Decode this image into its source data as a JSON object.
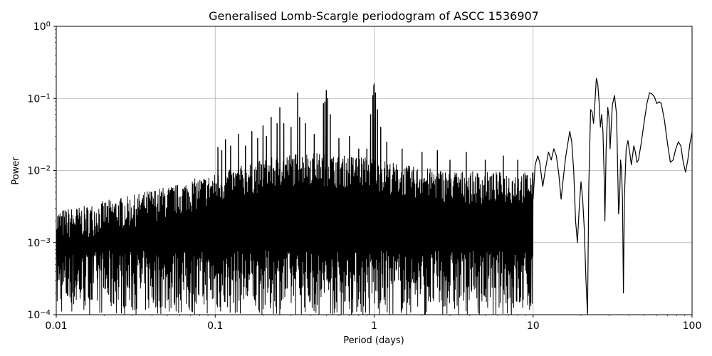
{
  "chart_data": {
    "type": "line",
    "title": "Generalised Lomb-Scargle periodogram of ASCC 1536907",
    "xlabel": "Period (days)",
    "ylabel": "Power",
    "xscale": "log",
    "yscale": "log",
    "xlim": [
      0.01,
      100
    ],
    "ylim": [
      0.0001,
      1
    ],
    "grid": true,
    "line_color": "#000000",
    "x_ticks": [
      {
        "value": 0.01,
        "label": "0.01"
      },
      {
        "value": 0.1,
        "label": "0.1"
      },
      {
        "value": 1,
        "label": "1"
      },
      {
        "value": 10,
        "label": "10"
      },
      {
        "value": 100,
        "label": "100"
      }
    ],
    "y_ticks": [
      {
        "value": 0.0001,
        "base": "10",
        "exp": "−4"
      },
      {
        "value": 0.001,
        "base": "10",
        "exp": "−3"
      },
      {
        "value": 0.01,
        "base": "10",
        "exp": "−2"
      },
      {
        "value": 0.1,
        "base": "10",
        "exp": "−1"
      },
      {
        "value": 1,
        "base": "10",
        "exp": "0"
      }
    ],
    "envelope": [
      [
        0.01,
        0.0028
      ],
      [
        0.012,
        0.003
      ],
      [
        0.015,
        0.0032
      ],
      [
        0.02,
        0.0038
      ],
      [
        0.025,
        0.0042
      ],
      [
        0.03,
        0.0045
      ],
      [
        0.04,
        0.0055
      ],
      [
        0.05,
        0.006
      ],
      [
        0.06,
        0.0065
      ],
      [
        0.07,
        0.0075
      ],
      [
        0.08,
        0.008
      ],
      [
        0.1,
        0.009
      ],
      [
        0.12,
        0.01
      ],
      [
        0.15,
        0.012
      ],
      [
        0.2,
        0.014
      ],
      [
        0.25,
        0.016
      ],
      [
        0.3,
        0.017
      ],
      [
        0.4,
        0.018
      ],
      [
        0.6,
        0.016
      ],
      [
        0.8,
        0.016
      ],
      [
        1.0,
        0.015
      ],
      [
        1.5,
        0.012
      ],
      [
        2.0,
        0.011
      ],
      [
        3.0,
        0.01
      ],
      [
        5.0,
        0.0095
      ],
      [
        7.0,
        0.0095
      ],
      [
        10.0,
        0.0095
      ]
    ],
    "spikes": [
      {
        "x": 0.104,
        "y": 0.021
      },
      {
        "x": 0.11,
        "y": 0.019
      },
      {
        "x": 0.116,
        "y": 0.027
      },
      {
        "x": 0.125,
        "y": 0.022
      },
      {
        "x": 0.14,
        "y": 0.032
      },
      {
        "x": 0.155,
        "y": 0.022
      },
      {
        "x": 0.17,
        "y": 0.035
      },
      {
        "x": 0.185,
        "y": 0.028
      },
      {
        "x": 0.2,
        "y": 0.042
      },
      {
        "x": 0.21,
        "y": 0.03
      },
      {
        "x": 0.225,
        "y": 0.055
      },
      {
        "x": 0.245,
        "y": 0.045
      },
      {
        "x": 0.255,
        "y": 0.075
      },
      {
        "x": 0.27,
        "y": 0.045
      },
      {
        "x": 0.3,
        "y": 0.04
      },
      {
        "x": 0.33,
        "y": 0.12
      },
      {
        "x": 0.34,
        "y": 0.055
      },
      {
        "x": 0.37,
        "y": 0.045
      },
      {
        "x": 0.42,
        "y": 0.032
      },
      {
        "x": 0.48,
        "y": 0.085
      },
      {
        "x": 0.49,
        "y": 0.09
      },
      {
        "x": 0.5,
        "y": 0.13
      },
      {
        "x": 0.51,
        "y": 0.1
      },
      {
        "x": 0.53,
        "y": 0.06
      },
      {
        "x": 0.6,
        "y": 0.028
      },
      {
        "x": 0.7,
        "y": 0.03
      },
      {
        "x": 0.8,
        "y": 0.02
      },
      {
        "x": 0.9,
        "y": 0.02
      },
      {
        "x": 0.95,
        "y": 0.06
      },
      {
        "x": 0.98,
        "y": 0.11
      },
      {
        "x": 0.995,
        "y": 0.15
      },
      {
        "x": 1.0,
        "y": 0.16
      },
      {
        "x": 1.02,
        "y": 0.12
      },
      {
        "x": 1.05,
        "y": 0.07
      },
      {
        "x": 1.1,
        "y": 0.04
      },
      {
        "x": 1.2,
        "y": 0.025
      },
      {
        "x": 1.5,
        "y": 0.02
      },
      {
        "x": 2.0,
        "y": 0.018
      },
      {
        "x": 2.5,
        "y": 0.019
      },
      {
        "x": 3.0,
        "y": 0.014
      },
      {
        "x": 3.8,
        "y": 0.018
      },
      {
        "x": 5.0,
        "y": 0.014
      },
      {
        "x": 6.5,
        "y": 0.016
      },
      {
        "x": 8.0,
        "y": 0.014
      }
    ],
    "dips": [
      {
        "x": 0.45,
        "y": 0.0001
      },
      {
        "x": 0.55,
        "y": 0.0001
      },
      {
        "x": 0.62,
        "y": 0.0001
      },
      {
        "x": 0.72,
        "y": 0.0001
      },
      {
        "x": 0.85,
        "y": 0.0001
      },
      {
        "x": 0.93,
        "y": 0.0001
      },
      {
        "x": 1.08,
        "y": 0.0001
      },
      {
        "x": 1.25,
        "y": 0.0001
      },
      {
        "x": 1.6,
        "y": 0.0001
      },
      {
        "x": 2.1,
        "y": 0.0001
      },
      {
        "x": 2.7,
        "y": 0.0001
      },
      {
        "x": 3.4,
        "y": 0.0001
      },
      {
        "x": 4.5,
        "y": 0.00013
      },
      {
        "x": 5.6,
        "y": 0.0001
      },
      {
        "x": 7.3,
        "y": 0.0001
      },
      {
        "x": 8.2,
        "y": 0.00015
      },
      {
        "x": 9.4,
        "y": 0.0002
      }
    ],
    "smooth_curve": [
      [
        10.0,
        0.004
      ],
      [
        10.3,
        0.012
      ],
      [
        10.7,
        0.016
      ],
      [
        11.0,
        0.013
      ],
      [
        11.5,
        0.006
      ],
      [
        12.0,
        0.011
      ],
      [
        12.5,
        0.018
      ],
      [
        13.0,
        0.014
      ],
      [
        13.5,
        0.02
      ],
      [
        14.0,
        0.016
      ],
      [
        14.5,
        0.009
      ],
      [
        15.0,
        0.004
      ],
      [
        15.5,
        0.008
      ],
      [
        16.0,
        0.015
      ],
      [
        16.5,
        0.023
      ],
      [
        17.0,
        0.035
      ],
      [
        17.5,
        0.025
      ],
      [
        18.0,
        0.01
      ],
      [
        18.5,
        0.002
      ],
      [
        19.0,
        0.001
      ],
      [
        19.5,
        0.003
      ],
      [
        20.0,
        0.007
      ],
      [
        20.5,
        0.004
      ],
      [
        21.0,
        0.0015
      ],
      [
        21.5,
        0.0003
      ],
      [
        22.0,
        0.0001
      ],
      [
        22.4,
        0.006
      ],
      [
        23.0,
        0.07
      ],
      [
        23.5,
        0.065
      ],
      [
        24.0,
        0.045
      ],
      [
        24.5,
        0.09
      ],
      [
        25.0,
        0.19
      ],
      [
        25.5,
        0.16
      ],
      [
        26.0,
        0.09
      ],
      [
        26.5,
        0.04
      ],
      [
        27.0,
        0.06
      ],
      [
        27.5,
        0.035
      ],
      [
        28.0,
        0.008
      ],
      [
        28.3,
        0.002
      ],
      [
        28.8,
        0.02
      ],
      [
        29.5,
        0.075
      ],
      [
        30.0,
        0.055
      ],
      [
        30.5,
        0.02
      ],
      [
        31.5,
        0.08
      ],
      [
        32.5,
        0.11
      ],
      [
        33.5,
        0.06
      ],
      [
        34.0,
        0.012
      ],
      [
        34.5,
        0.0025
      ],
      [
        35.0,
        0.004
      ],
      [
        35.5,
        0.014
      ],
      [
        36.0,
        0.01
      ],
      [
        36.5,
        0.004
      ],
      [
        37.0,
        0.0002
      ],
      [
        37.5,
        0.004
      ],
      [
        38.5,
        0.02
      ],
      [
        39.5,
        0.026
      ],
      [
        40.5,
        0.018
      ],
      [
        41.5,
        0.012
      ],
      [
        43.0,
        0.022
      ],
      [
        44.0,
        0.018
      ],
      [
        45.0,
        0.013
      ],
      [
        46.0,
        0.014
      ],
      [
        48.0,
        0.025
      ],
      [
        50.0,
        0.048
      ],
      [
        52.0,
        0.085
      ],
      [
        54.0,
        0.12
      ],
      [
        56.0,
        0.115
      ],
      [
        58.0,
        0.105
      ],
      [
        60.0,
        0.085
      ],
      [
        62.0,
        0.09
      ],
      [
        64.0,
        0.085
      ],
      [
        67.0,
        0.05
      ],
      [
        70.0,
        0.024
      ],
      [
        73.0,
        0.013
      ],
      [
        76.0,
        0.014
      ],
      [
        79.0,
        0.02
      ],
      [
        82.0,
        0.025
      ],
      [
        85.0,
        0.022
      ],
      [
        88.0,
        0.013
      ],
      [
        91.0,
        0.0095
      ],
      [
        94.0,
        0.014
      ],
      [
        97.0,
        0.024
      ],
      [
        100.0,
        0.034
      ]
    ]
  }
}
